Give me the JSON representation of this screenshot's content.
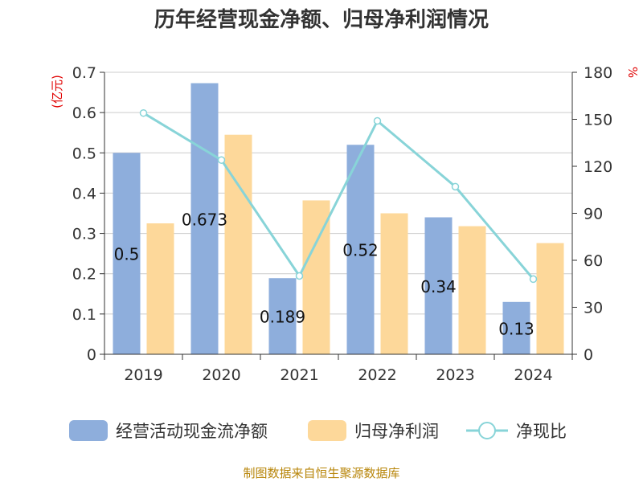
{
  "title": "历年经营现金净额、归母净利润情况",
  "source": "制图数据来自恒生聚源数据库",
  "chart_data": {
    "type": "bar",
    "categories": [
      "2019",
      "2020",
      "2021",
      "2022",
      "2023",
      "2024"
    ],
    "series": [
      {
        "name": "经营活动现金流净额",
        "kind": "bar",
        "axis": "left",
        "color": "#8eaedc",
        "values": [
          0.5,
          0.673,
          0.189,
          0.52,
          0.34,
          0.13
        ],
        "labels": [
          "0.5",
          "0.673",
          "0.189",
          "0.52",
          "0.34",
          "0.13"
        ]
      },
      {
        "name": "归母净利润",
        "kind": "bar",
        "axis": "left",
        "color": "#fdd89a",
        "values": [
          0.325,
          0.545,
          0.382,
          0.35,
          0.318,
          0.276
        ]
      },
      {
        "name": "净现比",
        "kind": "line",
        "axis": "right",
        "color": "#88d4d8",
        "values": [
          154,
          124,
          50,
          149,
          107,
          48
        ]
      }
    ],
    "left_axis": {
      "unit": "(亿元)",
      "ylim": [
        0,
        0.7
      ],
      "ticks": [
        "0",
        "0.1",
        "0.2",
        "0.3",
        "0.4",
        "0.5",
        "0.6",
        "0.7"
      ]
    },
    "right_axis": {
      "unit": "%",
      "ylim": [
        0,
        180
      ],
      "ticks": [
        "0",
        "30",
        "60",
        "90",
        "120",
        "150",
        "180"
      ]
    },
    "grid": true,
    "legend_position": "bottom"
  }
}
